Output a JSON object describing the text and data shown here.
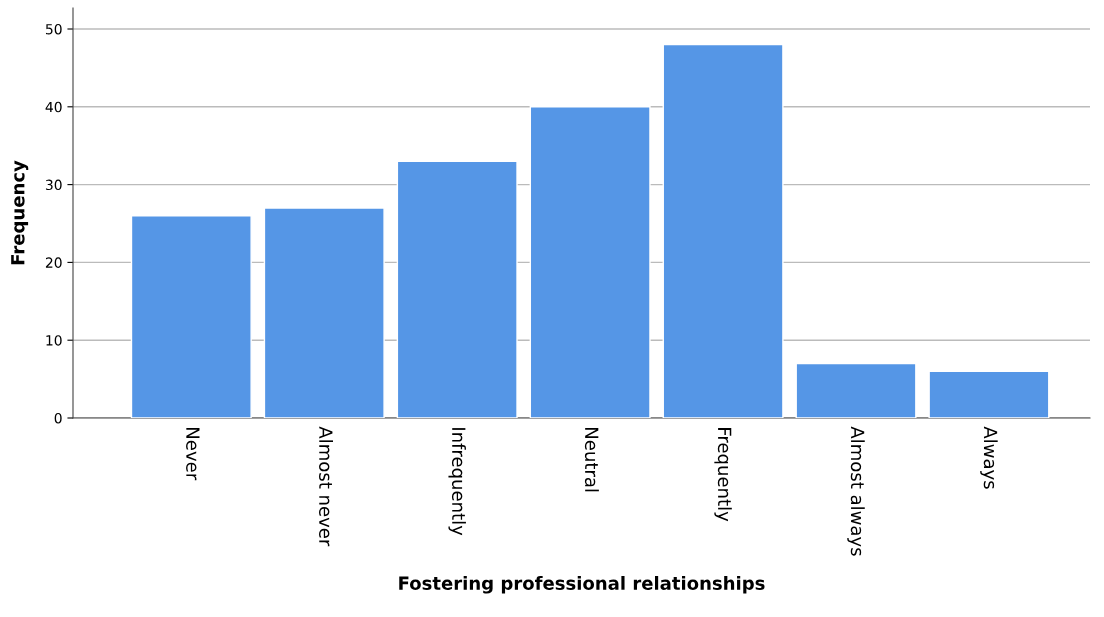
{
  "chart_data": {
    "type": "bar",
    "xlabel": "Fostering professional relationships",
    "ylabel": "Frequency",
    "categories": [
      "Never",
      "Almost never",
      "Infrequently",
      "Neutral",
      "Frequently",
      "Almost always",
      "Always"
    ],
    "values": [
      26,
      27,
      33,
      40,
      48,
      7,
      6
    ],
    "color": "#5596e6",
    "ylim": [
      0,
      52.7
    ],
    "yticks": [
      0,
      10,
      20,
      30,
      40,
      50
    ],
    "grid": "y",
    "legend": false
  }
}
